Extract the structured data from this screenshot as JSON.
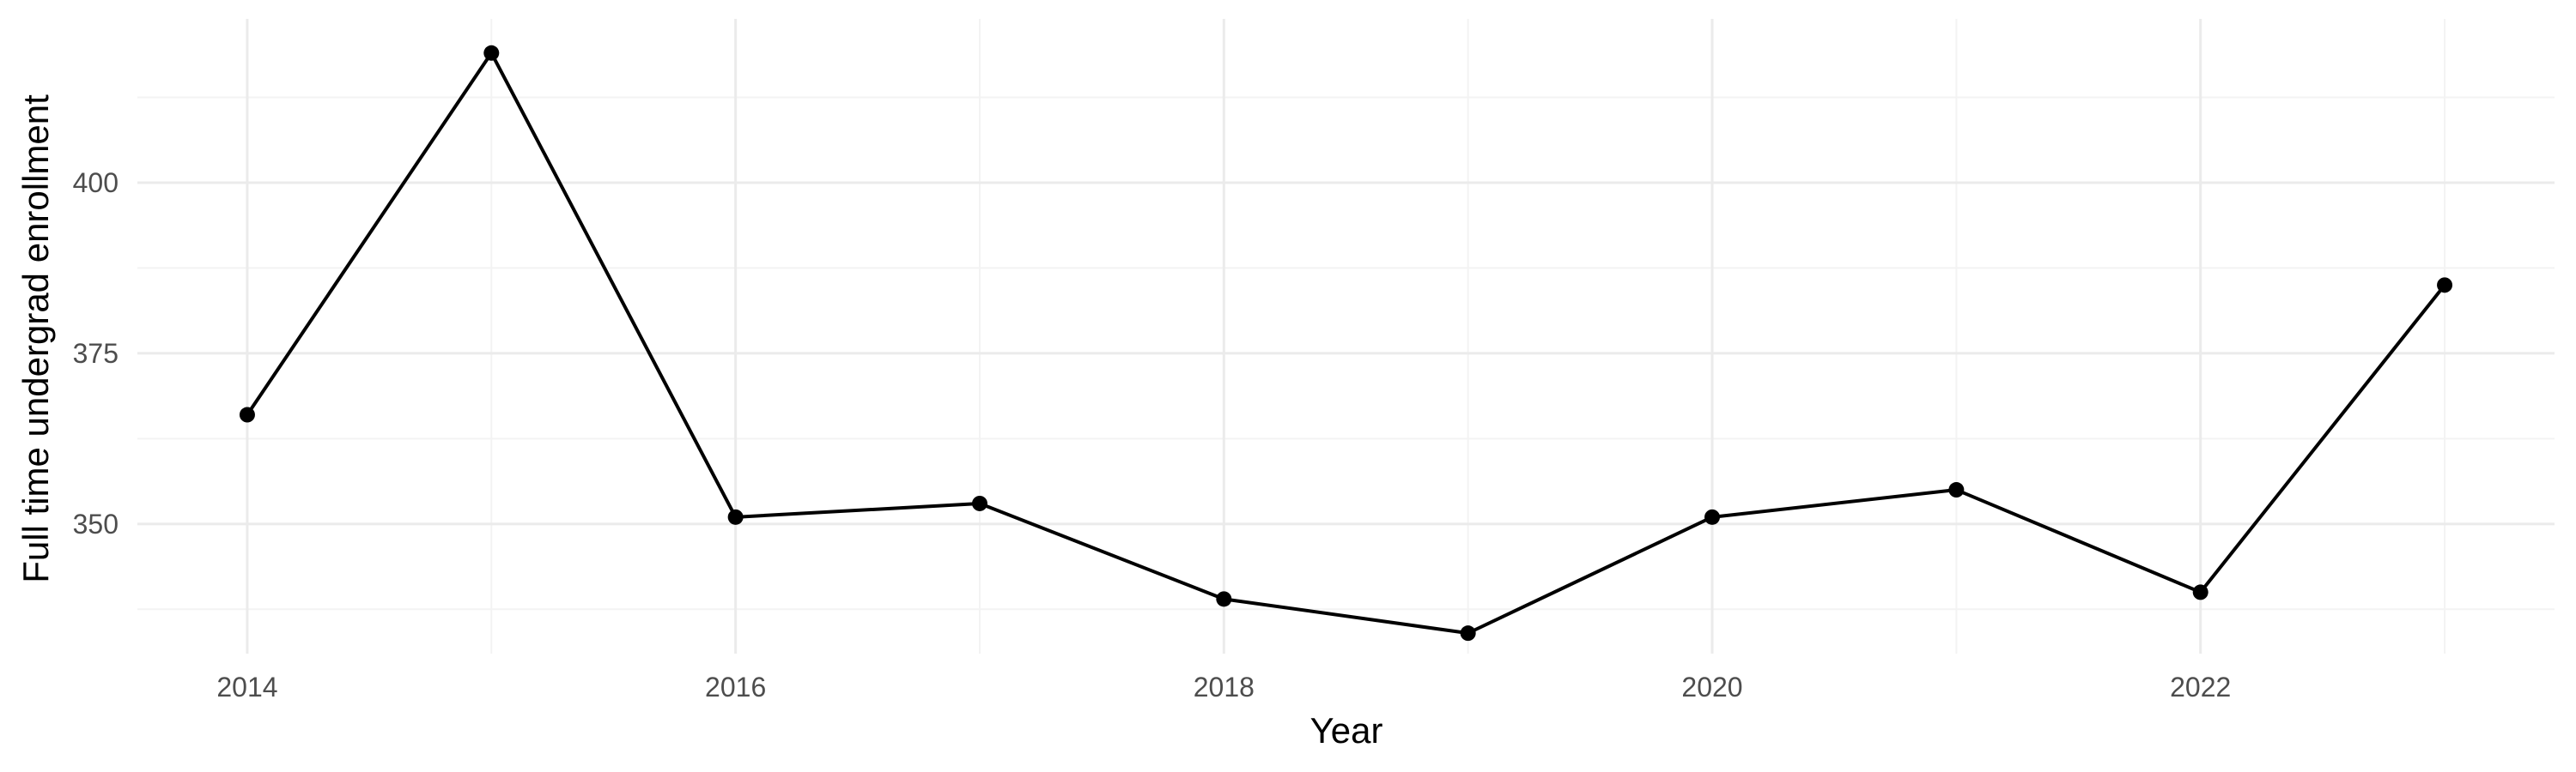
{
  "chart_data": {
    "type": "line",
    "title": "",
    "xlabel": "Year",
    "ylabel": "Full time undergrad enrollment",
    "x": [
      2014,
      2015,
      2016,
      2017,
      2018,
      2019,
      2020,
      2021,
      2022,
      2023
    ],
    "series": [
      {
        "values": [
          366,
          419,
          351,
          353,
          339,
          334,
          351,
          355,
          340,
          385
        ]
      }
    ],
    "xlim": [
      2013.55,
      2023.45
    ],
    "ylim": [
      331,
      424
    ],
    "x_ticks": [
      2014,
      2016,
      2018,
      2020,
      2022
    ],
    "x_tick_labels": [
      "2014",
      "2016",
      "2018",
      "2020",
      "2022"
    ],
    "y_ticks": [
      350,
      375,
      400
    ],
    "y_tick_labels": [
      "350",
      "375",
      "400"
    ],
    "x_minor_ticks": [
      2015,
      2017,
      2019,
      2021,
      2023
    ],
    "y_minor_ticks": [
      337.5,
      362.5,
      387.5,
      412.5
    ],
    "grid": true,
    "legend": "none",
    "colors": {
      "line": "#000000",
      "point": "#000000"
    }
  }
}
